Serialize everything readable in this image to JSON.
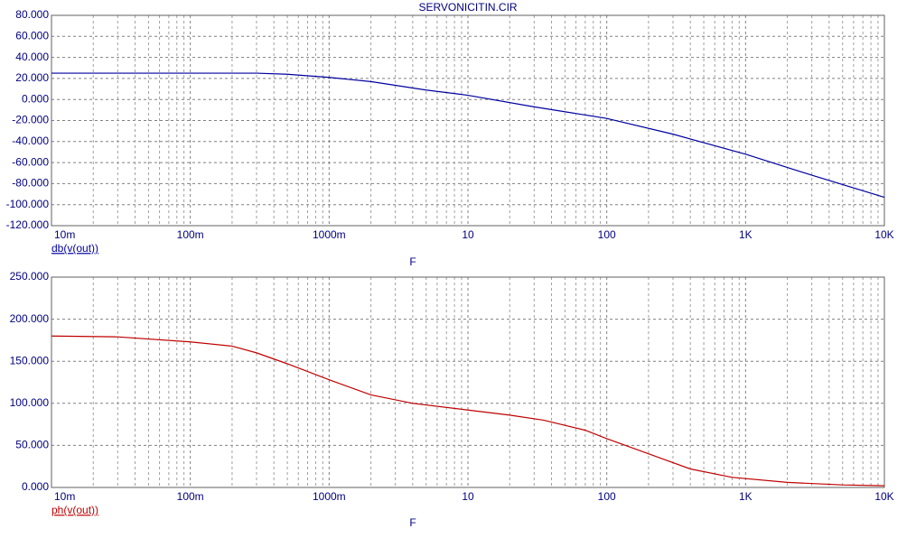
{
  "chart_data": [
    {
      "type": "line",
      "title": "SERVONICITIN.CIR",
      "x_label": "F",
      "log_x": true,
      "grid": true,
      "minor_grid": true,
      "x": [
        0.01,
        0.1,
        0.3,
        0.5,
        1,
        2,
        5,
        10,
        30,
        100,
        300,
        1000,
        3000,
        10000
      ],
      "series": [
        {
          "name": "db(v(out))",
          "color": "#0000a0",
          "values": [
            25,
            25,
            25,
            24,
            21,
            17,
            9,
            4,
            -7,
            -18,
            -33,
            -52,
            -72,
            -93
          ]
        }
      ],
      "xlim": [
        0.01,
        10000
      ],
      "xticks": [
        {
          "value": 0.01,
          "label": "10m"
        },
        {
          "value": 0.1,
          "label": "100m"
        },
        {
          "value": 1,
          "label": "1000m"
        },
        10,
        100,
        {
          "value": 1000,
          "label": "1K"
        },
        {
          "value": 10000,
          "label": "10K"
        }
      ],
      "ylim": [
        -120,
        80
      ],
      "yticks": [
        {
          "value": -120,
          "label": "-120.000"
        },
        {
          "value": -100,
          "label": "-100.000"
        },
        {
          "value": -80,
          "label": "-80.000"
        },
        {
          "value": -60,
          "label": "-60.000"
        },
        {
          "value": -40,
          "label": "-40.000"
        },
        {
          "value": -20,
          "label": "-20.000"
        },
        {
          "value": 0,
          "label": "0.000"
        },
        {
          "value": 20,
          "label": "20.000"
        },
        {
          "value": 40,
          "label": "40.000"
        },
        {
          "value": 60,
          "label": "60.000"
        },
        {
          "value": 80,
          "label": "80.000"
        }
      ]
    },
    {
      "type": "line",
      "x_label": "F",
      "log_x": true,
      "grid": true,
      "minor_grid": true,
      "x": [
        0.01,
        0.03,
        0.1,
        0.2,
        0.3,
        0.5,
        1,
        2,
        4,
        10,
        20,
        35,
        70,
        100,
        200,
        400,
        800,
        2000,
        5000,
        10000
      ],
      "series": [
        {
          "name": "ph(v(out))",
          "color": "#c00000",
          "values": [
            180,
            179,
            173,
            168,
            160,
            147,
            128,
            110,
            100,
            92,
            86,
            80,
            68,
            58,
            40,
            22,
            12,
            6,
            3,
            2
          ]
        }
      ],
      "xlim": [
        0.01,
        10000
      ],
      "xticks": [
        {
          "value": 0.01,
          "label": "10m"
        },
        {
          "value": 0.1,
          "label": "100m"
        },
        {
          "value": 1,
          "label": "1000m"
        },
        10,
        100,
        {
          "value": 1000,
          "label": "1K"
        },
        {
          "value": 10000,
          "label": "10K"
        }
      ],
      "ylim": [
        0,
        250
      ],
      "yticks": [
        {
          "value": 0,
          "label": "0.000"
        },
        {
          "value": 50,
          "label": "50.000"
        },
        {
          "value": 100,
          "label": "100.000"
        },
        {
          "value": 150,
          "label": "150.000"
        },
        {
          "value": 200,
          "label": "200.000"
        },
        {
          "value": 250,
          "label": "250.000"
        }
      ]
    }
  ]
}
